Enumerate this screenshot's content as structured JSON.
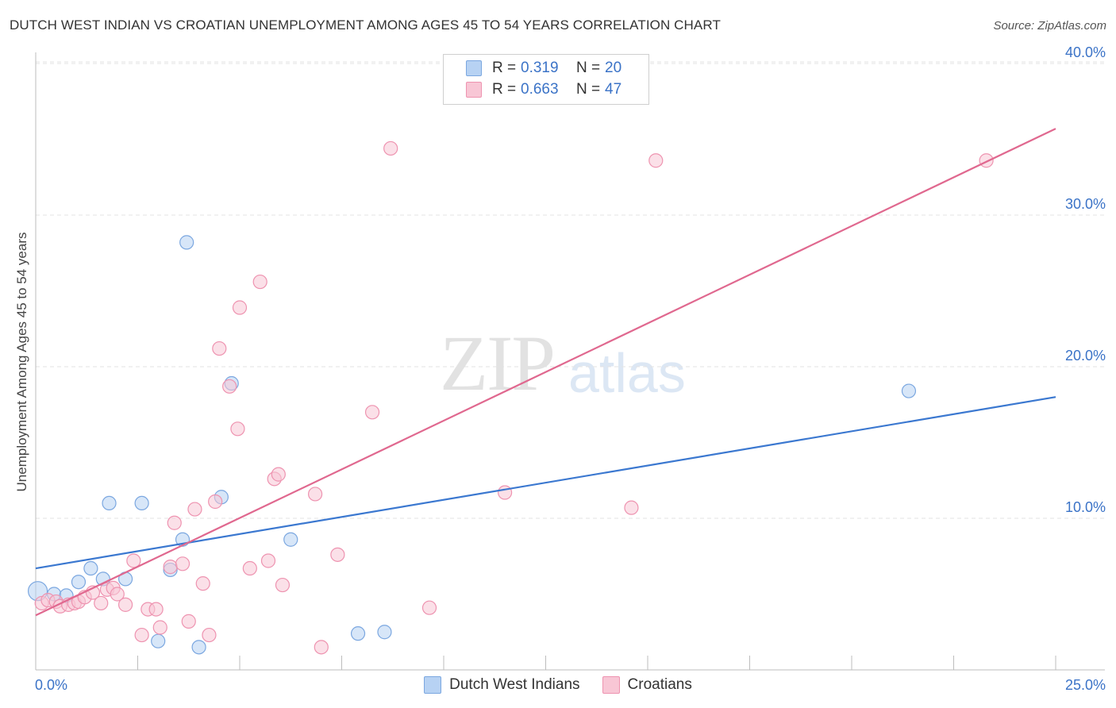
{
  "header": {
    "title": "DUTCH WEST INDIAN VS CROATIAN UNEMPLOYMENT AMONG AGES 45 TO 54 YEARS CORRELATION CHART",
    "source": "Source: ZipAtlas.com"
  },
  "watermark": {
    "zip": "ZIP",
    "atlas": "atlas"
  },
  "legend": {
    "rows": [
      {
        "r_label": "R =",
        "r_value": "0.319",
        "n_label": "N =",
        "n_value": "20",
        "fill": "#b7d2f3",
        "stroke": "#7ba7e0"
      },
      {
        "r_label": "R =",
        "r_value": "0.663",
        "n_label": "N =",
        "n_value": "47",
        "fill": "#f8c6d5",
        "stroke": "#ee93b0"
      }
    ]
  },
  "bottom_legend": [
    {
      "label": "Dutch West Indians",
      "fill": "#b7d2f3",
      "stroke": "#7ba7e0"
    },
    {
      "label": "Croatians",
      "fill": "#f8c6d5",
      "stroke": "#ee93b0"
    }
  ],
  "chart_data": {
    "type": "scatter",
    "title": "DUTCH WEST INDIAN VS CROATIAN UNEMPLOYMENT AMONG AGES 45 TO 54 YEARS CORRELATION CHART",
    "xlabel": "",
    "ylabel": "Unemployment Among Ages 45 to 54 years",
    "xlim": [
      0,
      25
    ],
    "ylim": [
      0,
      40
    ],
    "x_tick_labels": [
      "0.0%",
      "25.0%"
    ],
    "y_tick_labels": [
      "10.0%",
      "20.0%",
      "30.0%",
      "40.0%"
    ],
    "y_ticks": [
      10,
      20,
      30,
      40
    ],
    "grid": true,
    "series": [
      {
        "name": "Dutch West Indians",
        "color": "#3b78d0",
        "marker_fill": "#b7d2f3",
        "marker_stroke": "#7ba7e0",
        "points": [
          [
            0.05,
            5.2
          ],
          [
            0.45,
            5.0
          ],
          [
            0.75,
            4.9
          ],
          [
            1.05,
            5.8
          ],
          [
            1.35,
            6.7
          ],
          [
            1.65,
            6.0
          ],
          [
            1.8,
            11.0
          ],
          [
            2.2,
            6.0
          ],
          [
            2.6,
            11.0
          ],
          [
            3.0,
            1.9
          ],
          [
            3.3,
            6.6
          ],
          [
            3.6,
            8.6
          ],
          [
            3.7,
            28.2
          ],
          [
            4.0,
            1.5
          ],
          [
            4.55,
            11.4
          ],
          [
            4.8,
            18.9
          ],
          [
            6.25,
            8.6
          ],
          [
            7.9,
            2.4
          ],
          [
            8.55,
            2.5
          ],
          [
            21.4,
            18.4
          ]
        ],
        "trendline": [
          [
            0,
            6.7
          ],
          [
            25,
            18.0
          ]
        ]
      },
      {
        "name": "Croatians",
        "color": "#e0688f",
        "marker_fill": "#f8c6d5",
        "marker_stroke": "#ee93b0",
        "points": [
          [
            0.15,
            4.4
          ],
          [
            0.3,
            4.6
          ],
          [
            0.5,
            4.5
          ],
          [
            0.6,
            4.2
          ],
          [
            0.8,
            4.3
          ],
          [
            0.95,
            4.4
          ],
          [
            1.05,
            4.5
          ],
          [
            1.2,
            4.8
          ],
          [
            1.4,
            5.1
          ],
          [
            1.6,
            4.4
          ],
          [
            1.75,
            5.3
          ],
          [
            1.9,
            5.4
          ],
          [
            2.0,
            5.0
          ],
          [
            2.2,
            4.3
          ],
          [
            2.4,
            7.2
          ],
          [
            2.6,
            2.3
          ],
          [
            2.75,
            4.0
          ],
          [
            2.95,
            4.0
          ],
          [
            3.05,
            2.8
          ],
          [
            3.3,
            6.8
          ],
          [
            3.4,
            9.7
          ],
          [
            3.6,
            7.0
          ],
          [
            3.75,
            3.2
          ],
          [
            3.9,
            10.6
          ],
          [
            4.1,
            5.7
          ],
          [
            4.25,
            2.3
          ],
          [
            4.4,
            11.1
          ],
          [
            4.5,
            21.2
          ],
          [
            4.75,
            18.7
          ],
          [
            4.95,
            15.9
          ],
          [
            5.0,
            23.9
          ],
          [
            5.25,
            6.7
          ],
          [
            5.5,
            25.6
          ],
          [
            5.7,
            7.2
          ],
          [
            5.85,
            12.6
          ],
          [
            5.95,
            12.9
          ],
          [
            6.05,
            5.6
          ],
          [
            6.85,
            11.6
          ],
          [
            7.0,
            1.5
          ],
          [
            7.4,
            7.6
          ],
          [
            8.25,
            17.0
          ],
          [
            8.7,
            34.4
          ],
          [
            9.65,
            4.1
          ],
          [
            11.5,
            11.7
          ],
          [
            14.6,
            10.7
          ],
          [
            15.2,
            33.6
          ],
          [
            23.3,
            33.6
          ]
        ],
        "trendline": [
          [
            0,
            3.6
          ],
          [
            25,
            35.7
          ]
        ]
      }
    ]
  }
}
